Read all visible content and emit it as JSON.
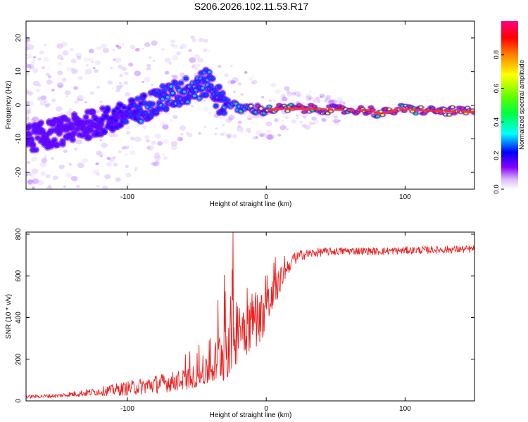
{
  "title": "S206.2026.102.11.53.R17",
  "colors": {
    "snr_line": "#ee2020",
    "ridge_core": "#ff3030",
    "axis": "#000000"
  },
  "colorbar": {
    "label": "Normalized spectral amplitude",
    "ticks": [
      "0.0",
      "0.2",
      "0.4",
      "0.6",
      "0.8"
    ],
    "tick_values": [
      0.0,
      0.2,
      0.4,
      0.6,
      0.8
    ],
    "range": [
      0,
      1
    ]
  },
  "chart_data": [
    {
      "type": "heatmap",
      "name": "spectrogram",
      "xlabel": "Height of straight line (km)",
      "ylabel": "Frequency (Hz)",
      "xlim": [
        -173,
        150
      ],
      "ylim": [
        -25,
        25
      ],
      "xticks": [
        -100,
        0,
        100
      ],
      "yticks": [
        -20,
        -10,
        0,
        10,
        20
      ],
      "xtick_labels": [
        "-100",
        "0",
        "100"
      ],
      "ytick_labels": [
        "-20",
        "-10",
        "0",
        "10",
        "20"
      ],
      "ridge": {
        "x": [
          -173,
          -160,
          -140,
          -120,
          -100,
          -90,
          -80,
          -60,
          -40,
          -35,
          -30,
          -20,
          -10,
          0,
          10,
          20,
          40,
          60,
          75,
          80,
          90,
          95,
          110,
          130,
          150
        ],
        "y": [
          -10,
          -9,
          -7,
          -5,
          -3,
          -1,
          1,
          4,
          7,
          2,
          1,
          -1,
          -1,
          -1.5,
          -1,
          -1,
          -1.2,
          -1.5,
          -1.5,
          -2.5,
          -2,
          -1,
          -1.5,
          -1.8,
          -2
        ],
        "amplitude": [
          0.1,
          0.12,
          0.15,
          0.2,
          0.3,
          0.35,
          0.4,
          0.4,
          0.45,
          0.35,
          0.35,
          0.55,
          0.7,
          0.85,
          0.9,
          0.9,
          0.9,
          0.9,
          0.9,
          0.9,
          0.85,
          0.85,
          0.9,
          0.9,
          0.9
        ]
      }
    },
    {
      "type": "line",
      "name": "snr",
      "xlabel": "Height of straight line (km)",
      "ylabel": "SNR (10 * v/v)",
      "xlim": [
        -173,
        150
      ],
      "ylim": [
        0,
        810
      ],
      "xticks": [
        -100,
        0,
        100
      ],
      "yticks": [
        0,
        200,
        400,
        600,
        800
      ],
      "xtick_labels": [
        "-100",
        "0",
        "100"
      ],
      "ytick_labels": [
        "0",
        "200",
        "400",
        "600",
        "800"
      ],
      "envelope": {
        "x": [
          -173,
          -150,
          -120,
          -100,
          -80,
          -60,
          -45,
          -40,
          -35,
          -30,
          -25,
          -20,
          -15,
          -10,
          -5,
          0,
          5,
          10,
          15,
          20,
          25,
          40,
          60,
          80,
          100,
          120,
          150
        ],
        "y": [
          20,
          25,
          45,
          60,
          80,
          100,
          130,
          150,
          200,
          260,
          320,
          350,
          360,
          390,
          400,
          440,
          500,
          580,
          640,
          680,
          700,
          715,
          720,
          718,
          722,
          725,
          728
        ],
        "noise_amplitude": [
          8,
          10,
          20,
          35,
          45,
          50,
          60,
          80,
          120,
          180,
          200,
          160,
          150,
          140,
          130,
          110,
          90,
          60,
          40,
          30,
          25,
          20,
          18,
          18,
          18,
          18,
          18
        ]
      },
      "peak": {
        "x": -24,
        "y": 810
      }
    }
  ]
}
